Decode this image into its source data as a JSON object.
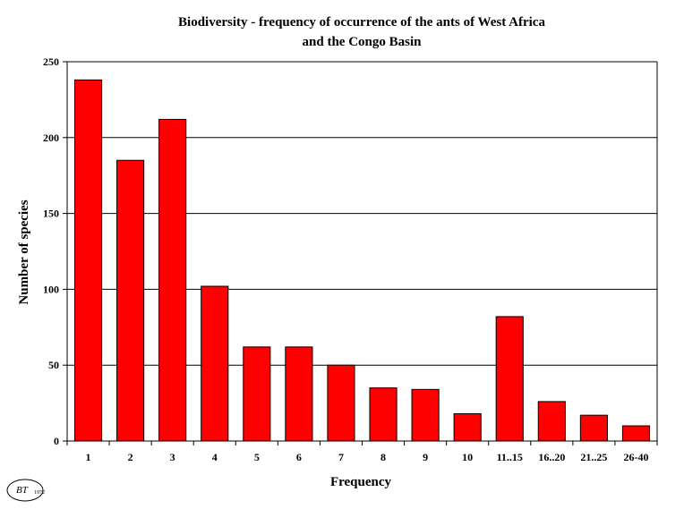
{
  "chart_data": {
    "type": "bar",
    "title_lines": [
      "Biodiversity - frequency of occurrence of the ants of West Africa",
      "and the Congo Basin"
    ],
    "xlabel": "Frequency",
    "ylabel": "Number of species",
    "categories": [
      "1",
      "2",
      "3",
      "4",
      "5",
      "6",
      "7",
      "8",
      "9",
      "10",
      "11..15",
      "16..20",
      "21..25",
      "26-40"
    ],
    "values": [
      238,
      185,
      212,
      102,
      62,
      62,
      50,
      35,
      34,
      18,
      82,
      26,
      17,
      10
    ],
    "ylim": [
      0,
      250
    ],
    "yticks": [
      0,
      50,
      100,
      150,
      200,
      250
    ],
    "grid": true,
    "legend": "none",
    "bar_color": "#ff0000",
    "bar_edge_color": "#000000"
  },
  "logo": {
    "text": "BT",
    "small_text": "1972"
  }
}
